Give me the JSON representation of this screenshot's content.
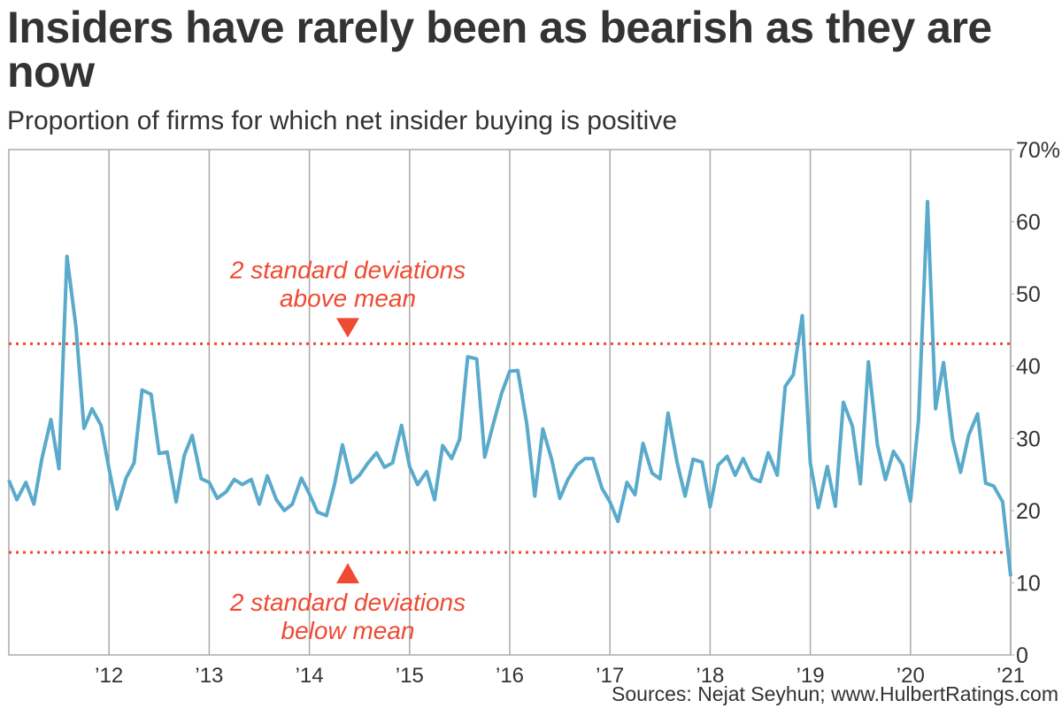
{
  "chart_data": {
    "type": "line",
    "title": "Insiders have rarely been as bearish as they are now",
    "subtitle": "Proportion of firms for which net insider buying is positive",
    "source": "Sources: Nejat Seyhun; www.HulbertRatings.com",
    "color": "#5aaacb",
    "x": [
      2011,
      2011.08,
      2011.17,
      2011.25,
      2011.33,
      2011.42,
      2011.5,
      2011.58,
      2011.67,
      2011.75,
      2011.83,
      2011.92,
      2012,
      2012.08,
      2012.17,
      2012.25,
      2012.33,
      2012.42,
      2012.5,
      2012.58,
      2012.67,
      2012.75,
      2012.83,
      2012.92,
      2013,
      2013.08,
      2013.17,
      2013.25,
      2013.33,
      2013.42,
      2013.5,
      2013.58,
      2013.67,
      2013.75,
      2013.83,
      2013.92,
      2014,
      2014.08,
      2014.17,
      2014.25,
      2014.33,
      2014.42,
      2014.5,
      2014.58,
      2014.67,
      2014.75,
      2014.83,
      2014.92,
      2015,
      2015.08,
      2015.17,
      2015.25,
      2015.33,
      2015.42,
      2015.5,
      2015.58,
      2015.67,
      2015.75,
      2015.83,
      2015.92,
      2016,
      2016.08,
      2016.17,
      2016.25,
      2016.33,
      2016.42,
      2016.5,
      2016.58,
      2016.67,
      2016.75,
      2016.83,
      2016.92,
      2017,
      2017.08,
      2017.17,
      2017.25,
      2017.33,
      2017.42,
      2017.5,
      2017.58,
      2017.67,
      2017.75,
      2017.83,
      2017.92,
      2018,
      2018.08,
      2018.17,
      2018.25,
      2018.33,
      2018.42,
      2018.5,
      2018.58,
      2018.67,
      2018.75,
      2018.83,
      2018.92,
      2019,
      2019.08,
      2019.17,
      2019.25,
      2019.33,
      2019.42,
      2019.5,
      2019.58,
      2019.67,
      2019.75,
      2019.83,
      2019.92,
      2020,
      2020.08,
      2020.17,
      2020.25,
      2020.33,
      2020.42,
      2020.5,
      2020.58,
      2020.67,
      2020.75,
      2020.83,
      2020.92,
      2021
    ],
    "values": [
      24.2,
      21.5,
      23.9,
      20.9,
      27.2,
      32.6,
      25.8,
      55.2,
      45.4,
      31.4,
      34.1,
      31.8,
      25.8,
      20.2,
      24.5,
      26.6,
      36.7,
      36.1,
      27.9,
      28.1,
      21.2,
      27.6,
      30.4,
      24.4,
      23.9,
      21.7,
      22.6,
      24.3,
      23.6,
      24.3,
      20.9,
      24.8,
      21.5,
      20.0,
      20.9,
      24.5,
      22.3,
      19.8,
      19.3,
      23.6,
      29.1,
      23.9,
      24.9,
      26.5,
      28.0,
      26.0,
      26.6,
      31.8,
      26.1,
      23.6,
      25.4,
      21.5,
      29.0,
      27.2,
      29.9,
      41.3,
      41.0,
      27.4,
      31.7,
      36.3,
      39.3,
      39.4,
      32.0,
      22.0,
      31.3,
      27.0,
      21.7,
      24.3,
      26.3,
      27.2,
      27.2,
      23.1,
      21.2,
      18.5,
      23.9,
      22.2,
      29.3,
      25.2,
      24.4,
      33.5,
      26.7,
      22.0,
      27.1,
      26.7,
      20.5,
      26.3,
      27.5,
      24.9,
      27.2,
      24.5,
      24.0,
      28.0,
      24.9,
      37.2,
      38.8,
      47.0,
      26.6,
      20.4,
      26.1,
      20.6,
      35.0,
      31.7,
      23.7,
      40.6,
      29.1,
      24.3,
      28.2,
      26.3,
      21.3,
      32.5,
      62.8,
      34.1,
      40.5,
      29.9,
      25.3,
      30.4,
      33.4,
      23.8,
      23.4,
      21.2,
      10.9
    ],
    "xlim": [
      2011,
      2021
    ],
    "xticks": [
      {
        "value": 2012,
        "label": "’12"
      },
      {
        "value": 2013,
        "label": "’13"
      },
      {
        "value": 2014,
        "label": "’14"
      },
      {
        "value": 2015,
        "label": "’15"
      },
      {
        "value": 2016,
        "label": "’16"
      },
      {
        "value": 2017,
        "label": "’17"
      },
      {
        "value": 2018,
        "label": "’18"
      },
      {
        "value": 2019,
        "label": "’19"
      },
      {
        "value": 2020,
        "label": "’20"
      },
      {
        "value": 2021,
        "label": "’21"
      }
    ],
    "ylim": [
      0,
      70
    ],
    "yticks": [
      0,
      10,
      20,
      30,
      40,
      50,
      60,
      {
        "value": 70,
        "label": "70%"
      }
    ],
    "grid": true,
    "annotations": [
      {
        "y": 43.1,
        "lines": [
          "2 standard deviations",
          "above mean"
        ],
        "color": "#ef4a32",
        "side": "above"
      },
      {
        "y": 14.2,
        "lines": [
          "2 standard deviations",
          "below mean"
        ],
        "color": "#ef4a32",
        "side": "below"
      }
    ]
  }
}
